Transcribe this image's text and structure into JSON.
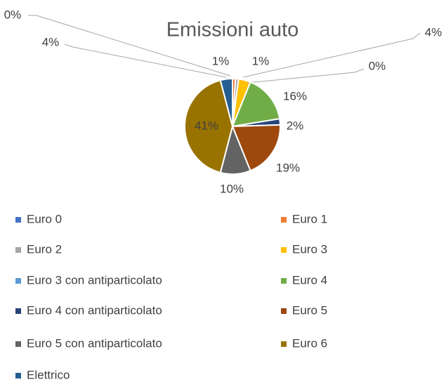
{
  "chart_data": {
    "type": "pie",
    "title": "Emissioni auto",
    "categories": [
      "Euro 0",
      "Euro 1",
      "Euro 2",
      "Euro 3",
      "Euro 3 con antiparticolato",
      "Euro 4",
      "Euro 4 con antiparticolato",
      "Euro 5",
      "Euro 5 con antiparticolato",
      "Euro 6",
      "Elettrico"
    ],
    "values": [
      0,
      1,
      1,
      4,
      0,
      16,
      2,
      19,
      10,
      41,
      4
    ],
    "value_labels": [
      "0%",
      "1%",
      "1%",
      "4%",
      "0%",
      "16%",
      "2%",
      "19%",
      "10%",
      "41%",
      "4%"
    ],
    "colors": [
      "#4472c4",
      "#ed7d31",
      "#a5a5a5",
      "#ffc000",
      "#5b9bd5",
      "#70ad47",
      "#264478",
      "#9e480e",
      "#636363",
      "#997300",
      "#255e91"
    ],
    "legend": "bottom"
  }
}
